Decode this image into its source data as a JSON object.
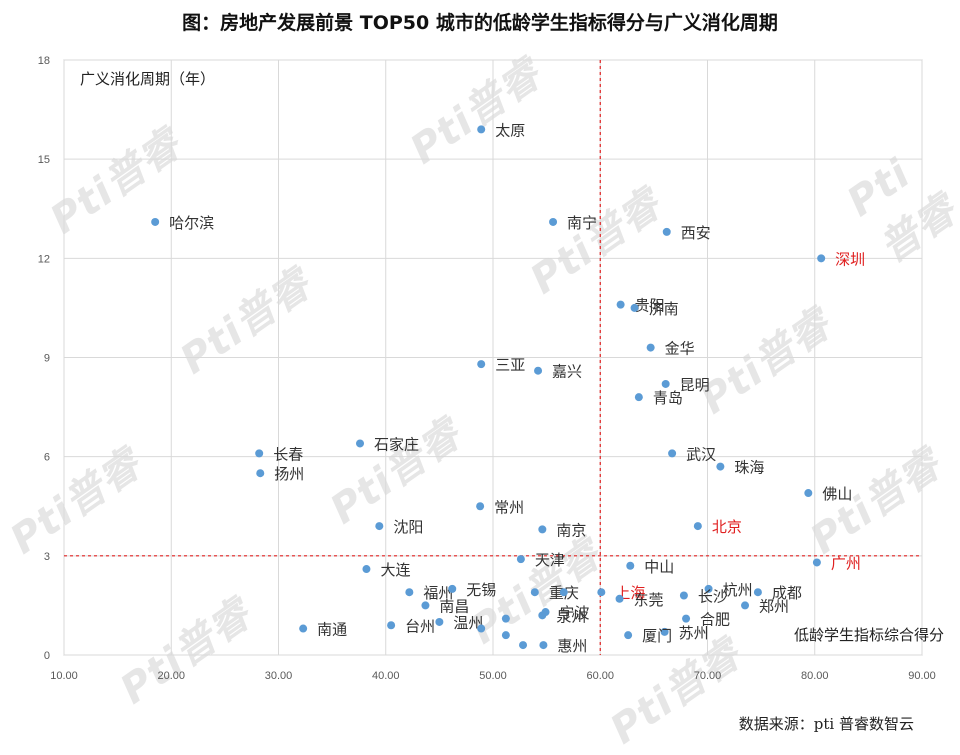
{
  "title": "图：房地产发展前景 TOP50 城市的低龄学生指标得分与广义消化周期",
  "source": "数据来源：pti 普睿数智云",
  "watermark": "Pti普睿",
  "colors": {
    "point": "#5b9bd5",
    "highlight_label": "#e02020",
    "reference_line": "#e02020",
    "grid": "#d9d9d9",
    "label": "#333333"
  },
  "chart_data": {
    "type": "scatter",
    "title": "图：房地产发展前景 TOP50 城市的低龄学生指标得分与广义消化周期",
    "xlabel": "低龄学生指标综合得分",
    "ylabel": "广义消化周期（年）",
    "xlim": [
      10,
      90
    ],
    "ylim": [
      0,
      18
    ],
    "x_ticks": [
      "10.00",
      "20.00",
      "30.00",
      "40.00",
      "50.00",
      "60.00",
      "70.00",
      "80.00",
      "90.00"
    ],
    "y_ticks": [
      "0",
      "3",
      "6",
      "9",
      "12",
      "15",
      "18"
    ],
    "grid": true,
    "reference_lines": [
      {
        "axis": "x",
        "value": 60
      },
      {
        "axis": "y",
        "value": 3
      }
    ],
    "points": [
      {
        "name": "太原",
        "x": 48.9,
        "y": 15.9
      },
      {
        "name": "哈尔滨",
        "x": 18.5,
        "y": 13.1
      },
      {
        "name": "南宁",
        "x": 55.6,
        "y": 13.1
      },
      {
        "name": "西安",
        "x": 66.2,
        "y": 12.8
      },
      {
        "name": "深圳",
        "x": 80.6,
        "y": 12.0,
        "highlight": true
      },
      {
        "name": "贵阳",
        "x": 61.9,
        "y": 10.6
      },
      {
        "name": "济南",
        "x": 63.2,
        "y": 10.5
      },
      {
        "name": "金华",
        "x": 64.7,
        "y": 9.3
      },
      {
        "name": "三亚",
        "x": 48.9,
        "y": 8.8
      },
      {
        "name": "嘉兴",
        "x": 54.2,
        "y": 8.6
      },
      {
        "name": "昆明",
        "x": 66.1,
        "y": 8.2
      },
      {
        "name": "青岛",
        "x": 63.6,
        "y": 7.8
      },
      {
        "name": "石家庄",
        "x": 37.6,
        "y": 6.4
      },
      {
        "name": "长春",
        "x": 28.2,
        "y": 6.1
      },
      {
        "name": "武汉",
        "x": 66.7,
        "y": 6.1
      },
      {
        "name": "珠海",
        "x": 71.2,
        "y": 5.7
      },
      {
        "name": "扬州",
        "x": 28.3,
        "y": 5.5
      },
      {
        "name": "佛山",
        "x": 79.4,
        "y": 4.9
      },
      {
        "name": "常州",
        "x": 48.8,
        "y": 4.5
      },
      {
        "name": "沈阳",
        "x": 39.4,
        "y": 3.9
      },
      {
        "name": "北京",
        "x": 69.1,
        "y": 3.9,
        "highlight": true
      },
      {
        "name": "南京",
        "x": 54.6,
        "y": 3.8
      },
      {
        "name": "天津",
        "x": 52.6,
        "y": 2.9
      },
      {
        "name": "广州",
        "x": 80.2,
        "y": 2.8,
        "highlight": true
      },
      {
        "name": "中山",
        "x": 62.8,
        "y": 2.7
      },
      {
        "name": "大连",
        "x": 38.2,
        "y": 2.6
      },
      {
        "name": "福州",
        "x": 42.2,
        "y": 1.9
      },
      {
        "name": "无锡",
        "x": 46.2,
        "y": 2.0
      },
      {
        "name": "上海",
        "x": 60.1,
        "y": 1.9,
        "highlight": true
      },
      {
        "name": "重庆",
        "x": 53.9,
        "y": 1.9
      },
      {
        "name": "杭州",
        "x": 70.1,
        "y": 2.0
      },
      {
        "name": "成都",
        "x": 74.7,
        "y": 1.9
      },
      {
        "name": "东莞",
        "x": 61.8,
        "y": 1.7
      },
      {
        "name": "长沙",
        "x": 67.8,
        "y": 1.8
      },
      {
        "name": "郑州",
        "x": 73.5,
        "y": 1.5
      },
      {
        "name": "南昌",
        "x": 43.7,
        "y": 1.5
      },
      {
        "name": "泉州",
        "x": 54.6,
        "y": 1.2
      },
      {
        "name": "宁波",
        "x": 54.9,
        "y": 1.3
      },
      {
        "name": "合肥",
        "x": 68.0,
        "y": 1.1
      },
      {
        "name": "温州",
        "x": 45.0,
        "y": 1.0
      },
      {
        "name": "台州",
        "x": 40.5,
        "y": 0.9
      },
      {
        "name": "南通",
        "x": 32.3,
        "y": 0.8
      },
      {
        "name": "苏州",
        "x": 66.0,
        "y": 0.7
      },
      {
        "name": "厦门",
        "x": 62.6,
        "y": 0.6
      },
      {
        "name": "惠州",
        "x": 54.7,
        "y": 0.3
      },
      {
        "name": "p1",
        "x": 52.8,
        "y": 0.3,
        "unlabeled": true
      },
      {
        "name": "p2",
        "x": 51.2,
        "y": 0.6,
        "unlabeled": true
      },
      {
        "name": "p3",
        "x": 51.2,
        "y": 1.1,
        "unlabeled": true
      },
      {
        "name": "p4",
        "x": 48.9,
        "y": 0.8,
        "unlabeled": true
      },
      {
        "name": "p5",
        "x": 56.6,
        "y": 1.9,
        "unlabeled": true
      }
    ]
  }
}
